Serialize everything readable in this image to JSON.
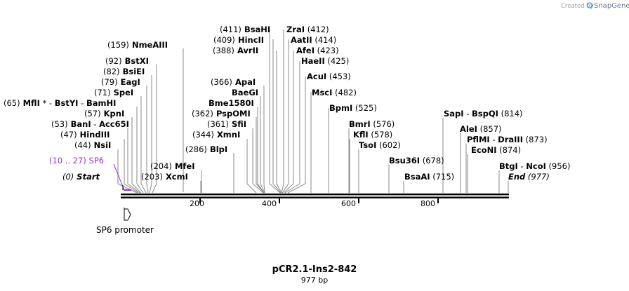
{
  "app": {
    "credit_text": "Created by",
    "credit_brand": "SnapGene"
  },
  "map": {
    "title": "pCR2.1-Ins2-842",
    "subtitle": "977 bp",
    "ticks": [
      {
        "label": "200",
        "bp": 200
      },
      {
        "label": "400",
        "bp": 400
      },
      {
        "label": "600",
        "bp": 600
      },
      {
        "label": "800",
        "bp": 800
      }
    ],
    "feature_label": "SP6 promoter",
    "colors": {
      "primer": "#9933cc",
      "line": "#000000",
      "leader": "#888888"
    }
  },
  "labels": [
    {
      "id": "nmeaiii",
      "parts": [
        {
          "t": "(159)",
          "b": false
        },
        {
          "t": "  NmeAIII",
          "b": true
        }
      ]
    },
    {
      "id": "bsaHI",
      "parts": [
        {
          "t": "(411)",
          "b": false
        },
        {
          "t": "  BsaHI",
          "b": true
        }
      ]
    },
    {
      "id": "zraI",
      "parts": [
        {
          "t": "ZraI",
          "b": true
        },
        {
          "t": "  (412)",
          "b": false
        }
      ]
    },
    {
      "id": "hincII",
      "parts": [
        {
          "t": "(409)",
          "b": false
        },
        {
          "t": "  HincII",
          "b": true
        }
      ]
    },
    {
      "id": "aatII",
      "parts": [
        {
          "t": "AatII",
          "b": true
        },
        {
          "t": "  (414)",
          "b": false
        }
      ]
    },
    {
      "id": "avrII",
      "parts": [
        {
          "t": "(388)",
          "b": false
        },
        {
          "t": "  AvrII",
          "b": true
        }
      ]
    },
    {
      "id": "afeI",
      "parts": [
        {
          "t": "AfeI",
          "b": true
        },
        {
          "t": "  (423)",
          "b": false
        }
      ]
    },
    {
      "id": "bstXI",
      "parts": [
        {
          "t": "(92)",
          "b": false
        },
        {
          "t": "  BstXI",
          "b": true
        }
      ]
    },
    {
      "id": "haeII",
      "parts": [
        {
          "t": "HaeII",
          "b": true
        },
        {
          "t": "  (425)",
          "b": false
        }
      ]
    },
    {
      "id": "bsiEI",
      "parts": [
        {
          "t": "(82)",
          "b": false
        },
        {
          "t": "  BsiEI",
          "b": true
        }
      ]
    },
    {
      "id": "acuI",
      "parts": [
        {
          "t": "AcuI",
          "b": true
        },
        {
          "t": "  (453)",
          "b": false
        }
      ]
    },
    {
      "id": "apaI",
      "parts": [
        {
          "t": "(366)",
          "b": false
        },
        {
          "t": "  ApaI",
          "b": true
        }
      ]
    },
    {
      "id": "eagI",
      "parts": [
        {
          "t": "(79)",
          "b": false
        },
        {
          "t": "  EagI",
          "b": true
        }
      ]
    },
    {
      "id": "baeGI",
      "parts": [
        {
          "t": "BaeGI",
          "b": true
        }
      ]
    },
    {
      "id": "mscI",
      "parts": [
        {
          "t": "MscI",
          "b": true
        },
        {
          "t": "  (482)",
          "b": false
        }
      ]
    },
    {
      "id": "speI",
      "parts": [
        {
          "t": "(71)",
          "b": false
        },
        {
          "t": "  SpeI",
          "b": true
        }
      ]
    },
    {
      "id": "mflI",
      "parts": [
        {
          "t": "(65)",
          "b": false
        },
        {
          "t": "  MflI",
          "b": true
        },
        {
          "t": " * - ",
          "b": false
        },
        {
          "t": "BstYI",
          "b": true
        },
        {
          "t": "  - ",
          "b": false
        },
        {
          "t": "BamHI",
          "b": true
        }
      ]
    },
    {
      "id": "bme1580I",
      "parts": [
        {
          "t": "Bme1580I",
          "b": true
        }
      ]
    },
    {
      "id": "bpmI",
      "parts": [
        {
          "t": "BpmI",
          "b": true
        },
        {
          "t": "  (525)",
          "b": false
        }
      ]
    },
    {
      "id": "kpnI",
      "parts": [
        {
          "t": "(57)",
          "b": false
        },
        {
          "t": "  KpnI",
          "b": true
        }
      ]
    },
    {
      "id": "pspOMI",
      "parts": [
        {
          "t": "(362)",
          "b": false
        },
        {
          "t": "  PspOMI",
          "b": true
        }
      ]
    },
    {
      "id": "sapI",
      "parts": [
        {
          "t": "SapI",
          "b": true
        },
        {
          "t": "  - ",
          "b": false
        },
        {
          "t": "BspQI",
          "b": true
        },
        {
          "t": "   (814)",
          "b": false
        }
      ]
    },
    {
      "id": "banI",
      "parts": [
        {
          "t": "(53)",
          "b": false
        },
        {
          "t": "  BanI",
          "b": true
        },
        {
          "t": "  - ",
          "b": false
        },
        {
          "t": "Acc65I",
          "b": true
        }
      ]
    },
    {
      "id": "sfiI",
      "parts": [
        {
          "t": "(361)",
          "b": false
        },
        {
          "t": "  SfiI",
          "b": true
        }
      ]
    },
    {
      "id": "bmrI",
      "parts": [
        {
          "t": "BmrI",
          "b": true
        },
        {
          "t": "  (576)",
          "b": false
        }
      ]
    },
    {
      "id": "aleI",
      "parts": [
        {
          "t": "AleI",
          "b": true
        },
        {
          "t": "  (857)",
          "b": false
        }
      ]
    },
    {
      "id": "hindIII",
      "parts": [
        {
          "t": "(47)",
          "b": false
        },
        {
          "t": "  HindIII",
          "b": true
        }
      ]
    },
    {
      "id": "xmnI",
      "parts": [
        {
          "t": "(344)",
          "b": false
        },
        {
          "t": "  XmnI",
          "b": true
        }
      ]
    },
    {
      "id": "kflI",
      "parts": [
        {
          "t": "KflI",
          "b": true
        },
        {
          "t": "  (578)",
          "b": false
        }
      ]
    },
    {
      "id": "pflMI",
      "parts": [
        {
          "t": "PflMI",
          "b": true
        },
        {
          "t": "  - ",
          "b": false
        },
        {
          "t": "DraIII",
          "b": true
        },
        {
          "t": "   (873)",
          "b": false
        }
      ]
    },
    {
      "id": "nsiI",
      "parts": [
        {
          "t": "(44)",
          "b": false
        },
        {
          "t": "  NsiI",
          "b": true
        }
      ]
    },
    {
      "id": "tsoI",
      "parts": [
        {
          "t": "TsoI",
          "b": true
        },
        {
          "t": "  (602)",
          "b": false
        }
      ]
    },
    {
      "id": "blpI",
      "parts": [
        {
          "t": "(286)",
          "b": false
        },
        {
          "t": "  BlpI",
          "b": true
        }
      ]
    },
    {
      "id": "ecoNI",
      "parts": [
        {
          "t": "EcoNI",
          "b": true
        },
        {
          "t": "  (874)",
          "b": false
        }
      ]
    },
    {
      "id": "sp6",
      "parts": [
        {
          "t": "(10 .. 27)",
          "b": false
        },
        {
          "t": "  SP6",
          "b": false
        }
      ]
    },
    {
      "id": "bsu36I",
      "parts": [
        {
          "t": "Bsu36I",
          "b": true
        },
        {
          "t": "  (678)",
          "b": false
        }
      ]
    },
    {
      "id": "mfeI",
      "parts": [
        {
          "t": "(204)",
          "b": false
        },
        {
          "t": "  MfeI",
          "b": true
        }
      ]
    },
    {
      "id": "btgI",
      "parts": [
        {
          "t": "BtgI",
          "b": true
        },
        {
          "t": "  - ",
          "b": false
        },
        {
          "t": "NcoI",
          "b": true
        },
        {
          "t": "   (956)",
          "b": false
        }
      ]
    },
    {
      "id": "start",
      "parts": [
        {
          "t": "(0)",
          "b": false
        },
        {
          "t": "  Start",
          "b": true
        }
      ]
    },
    {
      "id": "xcmI",
      "parts": [
        {
          "t": "(203)",
          "b": false
        },
        {
          "t": "  XcmI",
          "b": true
        }
      ]
    },
    {
      "id": "bsaAI",
      "parts": [
        {
          "t": "BsaAI",
          "b": true
        },
        {
          "t": "  (715)",
          "b": false
        }
      ]
    },
    {
      "id": "end",
      "parts": [
        {
          "t": "End",
          "b": true
        },
        {
          "t": "  (977)",
          "b": false
        }
      ]
    }
  ]
}
